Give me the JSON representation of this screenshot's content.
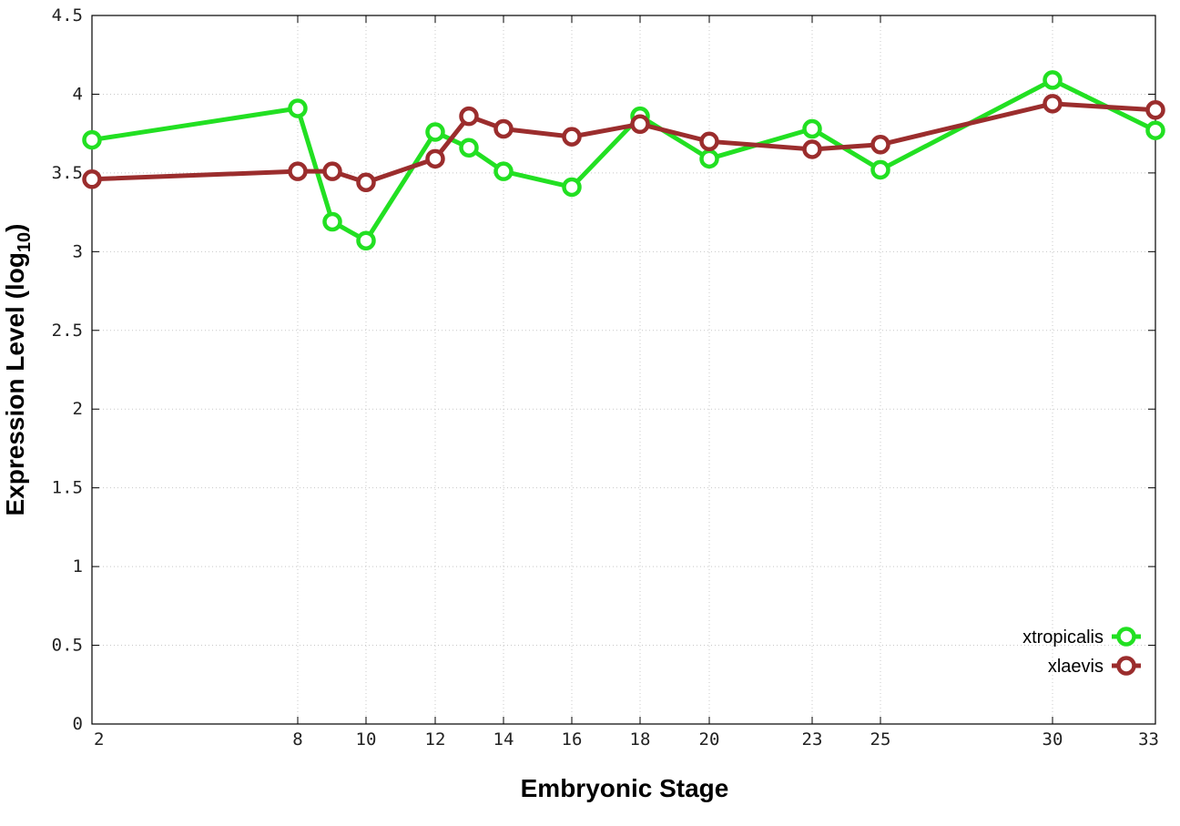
{
  "chart_data": {
    "type": "line",
    "xlabel": "Embryonic Stage",
    "ylabel": "Expression Level (log",
    "ylabel_sub": "10",
    "ylabel_end": ")",
    "x_ticks": [
      "2",
      "8",
      "10",
      "12",
      "14",
      "16",
      "18",
      "20",
      "23",
      "25",
      "30",
      "33"
    ],
    "y_ticks": [
      "0",
      "0.5",
      "1",
      "1.5",
      "2",
      "2.5",
      "3",
      "3.5",
      "4",
      "4.5"
    ],
    "ylim": [
      0,
      4.5
    ],
    "grid": true,
    "legend_position": "bottom-right",
    "x": [
      2,
      8,
      9,
      10,
      12,
      13,
      14,
      16,
      18,
      20,
      23,
      25,
      30,
      33
    ],
    "series": [
      {
        "name": "xtropicalis",
        "color": "#22e022",
        "values": [
          3.71,
          3.91,
          3.19,
          3.07,
          3.76,
          3.66,
          3.51,
          3.41,
          3.86,
          3.59,
          3.78,
          3.52,
          4.09,
          3.77
        ]
      },
      {
        "name": "xlaevis",
        "color": "#9b2d2d",
        "values": [
          3.46,
          3.51,
          3.51,
          3.44,
          3.59,
          3.86,
          3.78,
          3.73,
          3.81,
          3.7,
          3.65,
          3.68,
          3.94,
          3.9
        ]
      }
    ]
  }
}
